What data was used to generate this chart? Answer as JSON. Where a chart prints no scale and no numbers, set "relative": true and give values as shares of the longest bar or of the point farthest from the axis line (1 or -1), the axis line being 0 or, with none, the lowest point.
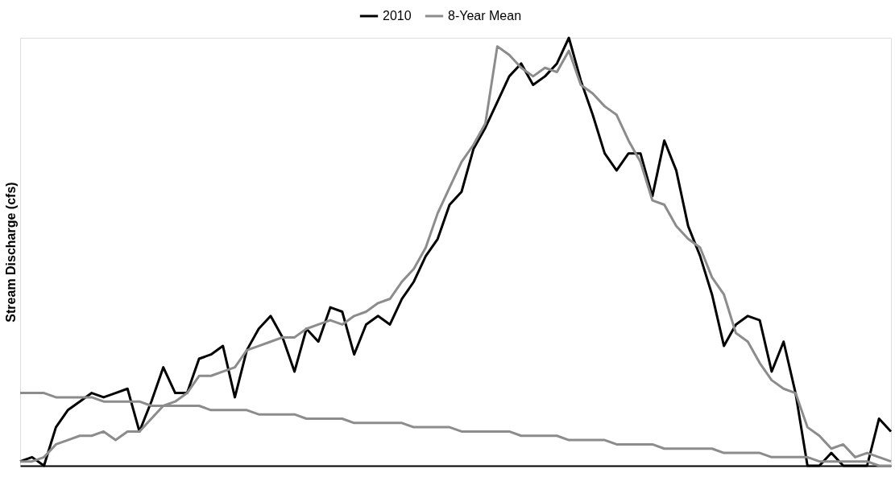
{
  "chart_data": {
    "type": "line",
    "relative": true,
    "ylabel": "Stream Discharge (cfs)",
    "legend": "top",
    "grid": false,
    "marker": "none",
    "line_style": "solid",
    "categories": [
      null,
      null,
      null,
      null,
      null,
      null,
      null,
      null,
      null,
      null,
      null,
      null,
      null,
      null,
      null,
      null,
      null,
      null,
      null,
      null,
      null,
      null,
      null,
      null,
      null,
      null,
      null,
      null,
      null,
      null,
      null,
      null,
      null,
      null,
      null,
      null,
      null,
      null,
      null,
      null,
      null,
      null,
      null,
      null,
      null,
      null,
      null,
      null,
      null,
      null,
      null,
      null,
      null,
      null,
      null,
      null,
      null,
      null,
      null,
      null,
      null,
      null,
      null,
      null,
      null,
      null,
      null,
      null,
      null,
      null,
      null,
      null,
      null,
      null
    ],
    "series": [
      {
        "name": "2010",
        "color": "#000000",
        "values": [
          0.01,
          0.02,
          0,
          0.09,
          0.13,
          0.15,
          0.17,
          0.16,
          0.17,
          0.18,
          0.08,
          0.15,
          0.23,
          0.17,
          0.17,
          0.25,
          0.26,
          0.28,
          0.16,
          0.27,
          0.32,
          0.35,
          0.3,
          0.22,
          0.32,
          0.29,
          0.37,
          0.36,
          0.26,
          0.33,
          0.35,
          0.33,
          0.39,
          0.43,
          0.49,
          0.53,
          0.61,
          0.64,
          0.74,
          0.79,
          0.85,
          0.91,
          0.94,
          0.89,
          0.91,
          0.94,
          1.0,
          0.9,
          0.82,
          0.73,
          0.69,
          0.73,
          0.73,
          0.63,
          0.76,
          0.69,
          0.56,
          0.49,
          0.4,
          0.28,
          0.33,
          0.35,
          0.34,
          0.22,
          0.29,
          0.17,
          0,
          0,
          0.03,
          0,
          0,
          0,
          0.11,
          0.08
        ]
      },
      {
        "name": "8-Year Mean",
        "color": "#8c8c8c",
        "values": [
          0.01,
          0.01,
          0.02,
          0.05,
          0.06,
          0.07,
          0.07,
          0.08,
          0.06,
          0.08,
          0.08,
          0.11,
          0.14,
          0.15,
          0.17,
          0.21,
          0.21,
          0.22,
          0.23,
          0.27,
          0.28,
          0.29,
          0.3,
          0.3,
          0.32,
          0.33,
          0.34,
          0.33,
          0.35,
          0.36,
          0.38,
          0.39,
          0.43,
          0.46,
          0.51,
          0.59,
          0.65,
          0.71,
          0.75,
          0.8,
          0.98,
          0.96,
          0.93,
          0.91,
          0.93,
          0.92,
          0.97,
          0.89,
          0.87,
          0.84,
          0.82,
          0.76,
          0.71,
          0.62,
          0.61,
          0.56,
          0.53,
          0.51,
          0.44,
          0.4,
          0.31,
          0.29,
          0.24,
          0.2,
          0.18,
          0.17,
          0.09,
          0.07,
          0.04,
          0.05,
          0.02,
          0.03,
          0.02,
          0.01
        ]
      },
      {
        "type": "line",
        "color": "#8c8c8c",
        "values": [
          0.17,
          0.17,
          0.17,
          0.16,
          0.16,
          0.16,
          0.16,
          0.15,
          0.15,
          0.15,
          0.15,
          0.14,
          0.14,
          0.14,
          0.14,
          0.14,
          0.13,
          0.13,
          0.13,
          0.13,
          0.12,
          0.12,
          0.12,
          0.12,
          0.11,
          0.11,
          0.11,
          0.11,
          0.1,
          0.1,
          0.1,
          0.1,
          0.1,
          0.09,
          0.09,
          0.09,
          0.09,
          0.08,
          0.08,
          0.08,
          0.08,
          0.08,
          0.07,
          0.07,
          0.07,
          0.07,
          0.06,
          0.06,
          0.06,
          0.06,
          0.05,
          0.05,
          0.05,
          0.05,
          0.04,
          0.04,
          0.04,
          0.04,
          0.04,
          0.03,
          0.03,
          0.03,
          0.03,
          0.02,
          0.02,
          0.02,
          0.02,
          0.01,
          0.01,
          0.01,
          0.01,
          0.01,
          0,
          0
        ]
      }
    ]
  }
}
